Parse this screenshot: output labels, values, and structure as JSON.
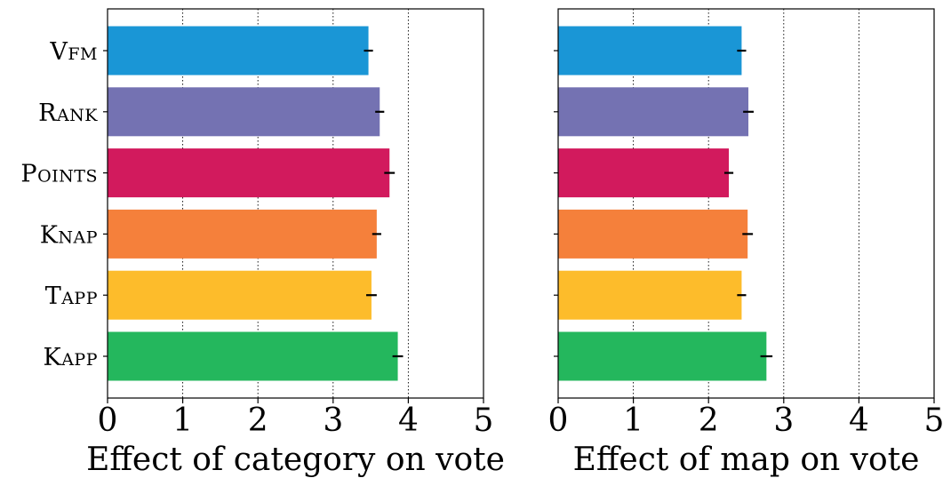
{
  "chart_data": [
    {
      "type": "bar",
      "orientation": "horizontal",
      "categories": [
        "Vfm",
        "Rank",
        "Points",
        "Knap",
        "Tapp",
        "Kapp"
      ],
      "values": [
        3.47,
        3.62,
        3.75,
        3.58,
        3.51,
        3.86
      ],
      "errors": [
        0.06,
        0.06,
        0.07,
        0.06,
        0.07,
        0.07
      ],
      "colors": [
        "#1a96d6",
        "#7472b2",
        "#d21a5d",
        "#f5803b",
        "#fdbc2b",
        "#24b75d"
      ],
      "xlabel": "Effect of category on vote",
      "xlim": [
        0,
        5
      ],
      "xticks": [
        "0",
        "1",
        "2",
        "3",
        "4",
        "5"
      ],
      "grid": "vertical dotted at x=1,2,3,4",
      "show_category_labels": true
    },
    {
      "type": "bar",
      "orientation": "horizontal",
      "categories": [
        "Vfm",
        "Rank",
        "Points",
        "Knap",
        "Tapp",
        "Kapp"
      ],
      "values": [
        2.44,
        2.53,
        2.27,
        2.52,
        2.44,
        2.77
      ],
      "errors": [
        0.06,
        0.07,
        0.06,
        0.07,
        0.06,
        0.08
      ],
      "colors": [
        "#1a96d6",
        "#7472b2",
        "#d21a5d",
        "#f5803b",
        "#fdbc2b",
        "#24b75d"
      ],
      "xlabel": "Effect of map on vote",
      "xlim": [
        0,
        5
      ],
      "xticks": [
        "0",
        "1",
        "2",
        "3",
        "4",
        "5"
      ],
      "grid": "vertical dotted at x=1,2,3,4",
      "show_category_labels": false
    }
  ]
}
